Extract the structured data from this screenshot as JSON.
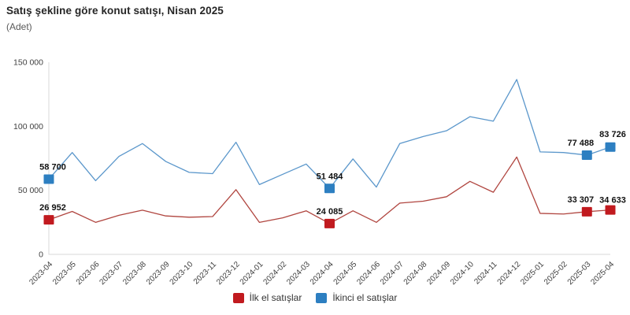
{
  "header": {
    "title": "Satış şekline göre konut satışı, Nisan 2025",
    "subtitle": "(Adet)"
  },
  "chart_data": {
    "type": "line",
    "title": "Satış şekline göre konut satışı, Nisan 2025",
    "unit_label": "(Adet)",
    "categories": [
      "2023-04",
      "2023-05",
      "2023-06",
      "2023-07",
      "2023-08",
      "2023-09",
      "2023-10",
      "2023-11",
      "2023-12",
      "2024-01",
      "2024-02",
      "2024-03",
      "2024-04",
      "2024-05",
      "2024-06",
      "2024-07",
      "2024-08",
      "2024-09",
      "2024-10",
      "2024-11",
      "2024-12",
      "2025-01",
      "2025-02",
      "2025-03",
      "2025-04"
    ],
    "series": [
      {
        "name": "İlk el satışlar",
        "line_color": "#b0453f",
        "marker_color": "#c11a1f",
        "values": [
          26952,
          33500,
          25000,
          30500,
          34500,
          30000,
          29000,
          29500,
          50500,
          25000,
          28500,
          34000,
          24085,
          34000,
          25000,
          40000,
          41500,
          45000,
          57000,
          48500,
          76000,
          32000,
          31500,
          33307,
          34633
        ]
      },
      {
        "name": "İkinci el satışlar",
        "line_color": "#5b97cb",
        "marker_color": "#2d7fc1",
        "values": [
          58700,
          79500,
          57500,
          76500,
          86500,
          72500,
          64000,
          63000,
          87500,
          54500,
          62500,
          70500,
          51484,
          74500,
          52500,
          86500,
          92000,
          96500,
          107500,
          104000,
          136500,
          80000,
          79500,
          77488,
          83726
        ]
      }
    ],
    "annotations": [
      {
        "series": 1,
        "index": 0,
        "text": "58 700"
      },
      {
        "series": 0,
        "index": 0,
        "text": "26 952"
      },
      {
        "series": 1,
        "index": 12,
        "text": "51 484"
      },
      {
        "series": 0,
        "index": 12,
        "text": "24 085"
      },
      {
        "series": 1,
        "index": 23,
        "text": "77 488"
      },
      {
        "series": 0,
        "index": 23,
        "text": "33 307"
      },
      {
        "series": 1,
        "index": 24,
        "text": "83 726"
      },
      {
        "series": 0,
        "index": 24,
        "text": "34 633"
      }
    ],
    "ylim": [
      0,
      150000
    ],
    "yticks": [
      {
        "value": 0,
        "label": "0"
      },
      {
        "value": 50000,
        "label": "50 000"
      },
      {
        "value": 100000,
        "label": "100 000"
      },
      {
        "value": 150000,
        "label": "150 000"
      }
    ],
    "grid": false,
    "axis_color": "#d9d9d9",
    "legend_position": "bottom"
  },
  "legend": {
    "items": [
      {
        "label": "İlk el satışlar",
        "color": "#c11a1f"
      },
      {
        "label": "İkinci el satışlar",
        "color": "#2d7fc1"
      }
    ]
  }
}
